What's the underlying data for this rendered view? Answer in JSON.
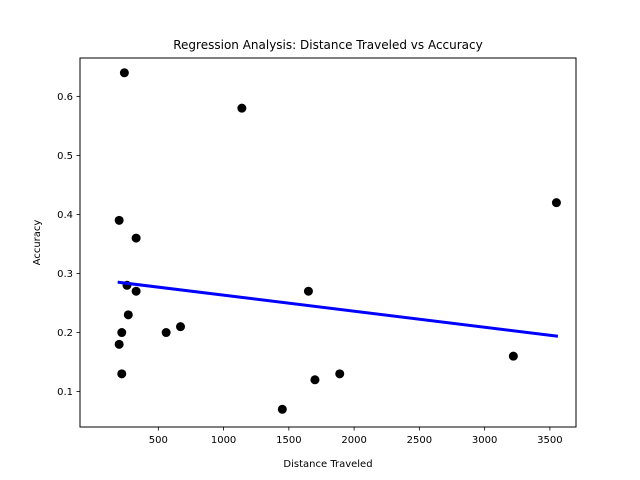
{
  "chart_data": {
    "type": "scatter",
    "title": "Regression Analysis: Distance Traveled vs Accuracy",
    "xlabel": "Distance Traveled",
    "ylabel": "Accuracy",
    "xlim": [
      -100,
      3700
    ],
    "ylim": [
      0.04,
      0.665
    ],
    "xticks": [
      500,
      1000,
      1500,
      2000,
      2500,
      3000,
      3500
    ],
    "yticks": [
      0.1,
      0.2,
      0.3,
      0.4,
      0.5,
      0.6
    ],
    "xtick_labels": [
      "500",
      "1000",
      "1500",
      "2000",
      "2500",
      "3000",
      "3500"
    ],
    "ytick_labels": [
      "0.1",
      "0.2",
      "0.3",
      "0.4",
      "0.5",
      "0.6"
    ],
    "grid": false,
    "series": [
      {
        "type": "scatter",
        "color": "#000000",
        "points": [
          {
            "x": 240,
            "y": 0.64
          },
          {
            "x": 1140,
            "y": 0.58
          },
          {
            "x": 3550,
            "y": 0.42
          },
          {
            "x": 200,
            "y": 0.39
          },
          {
            "x": 330,
            "y": 0.36
          },
          {
            "x": 260,
            "y": 0.28
          },
          {
            "x": 330,
            "y": 0.27
          },
          {
            "x": 1650,
            "y": 0.27
          },
          {
            "x": 270,
            "y": 0.23
          },
          {
            "x": 670,
            "y": 0.21
          },
          {
            "x": 220,
            "y": 0.2
          },
          {
            "x": 560,
            "y": 0.2
          },
          {
            "x": 200,
            "y": 0.18
          },
          {
            "x": 3220,
            "y": 0.16
          },
          {
            "x": 220,
            "y": 0.13
          },
          {
            "x": 1890,
            "y": 0.13
          },
          {
            "x": 1700,
            "y": 0.12
          },
          {
            "x": 1450,
            "y": 0.07
          }
        ]
      },
      {
        "type": "line",
        "color": "#0000ff",
        "points": [
          {
            "x": 200,
            "y": 0.285
          },
          {
            "x": 3550,
            "y": 0.194
          }
        ]
      }
    ]
  }
}
